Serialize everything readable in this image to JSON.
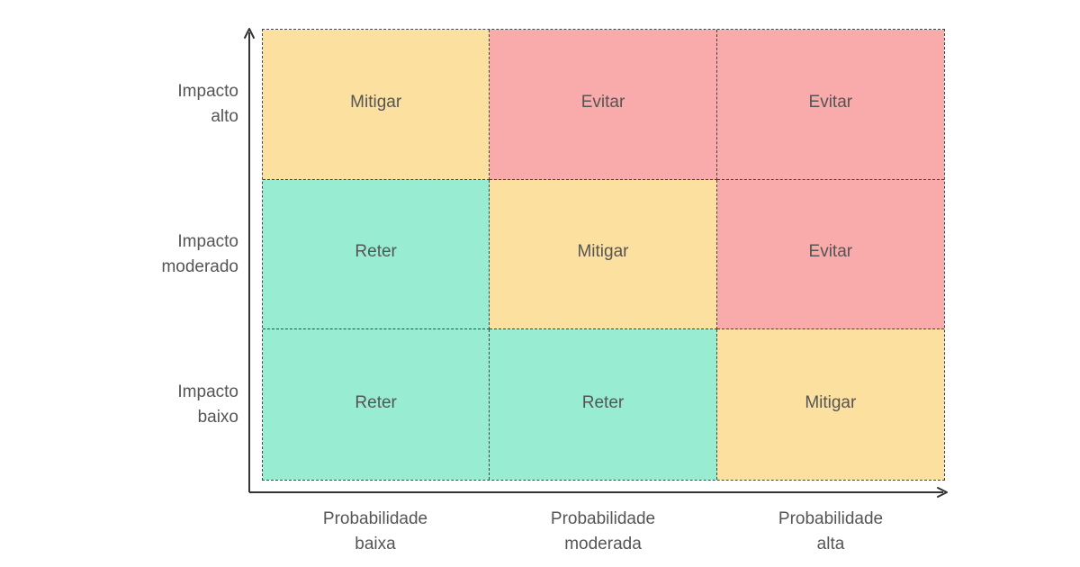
{
  "colors": {
    "retain": "#97ecd2",
    "mitigate": "#fbe0a0",
    "avoid": "#f9aaaa",
    "axis": "#333333",
    "grid": "#444444",
    "text": "#555555"
  },
  "y_axis": {
    "labels": [
      [
        "Impacto",
        "alto"
      ],
      [
        "Impacto",
        "moderado"
      ],
      [
        "Impacto",
        "baixo"
      ]
    ]
  },
  "x_axis": {
    "labels": [
      [
        "Probabilidade",
        "baixa"
      ],
      [
        "Probabilidade",
        "moderada"
      ],
      [
        "Probabilidade",
        "alta"
      ]
    ]
  },
  "matrix": {
    "rows": [
      [
        {
          "label": "Mitigar",
          "level": "mitigate"
        },
        {
          "label": "Evitar",
          "level": "avoid"
        },
        {
          "label": "Evitar",
          "level": "avoid"
        }
      ],
      [
        {
          "label": "Reter",
          "level": "retain"
        },
        {
          "label": "Mitigar",
          "level": "mitigate"
        },
        {
          "label": "Evitar",
          "level": "avoid"
        }
      ],
      [
        {
          "label": "Reter",
          "level": "retain"
        },
        {
          "label": "Reter",
          "level": "retain"
        },
        {
          "label": "Mitigar",
          "level": "mitigate"
        }
      ]
    ]
  }
}
